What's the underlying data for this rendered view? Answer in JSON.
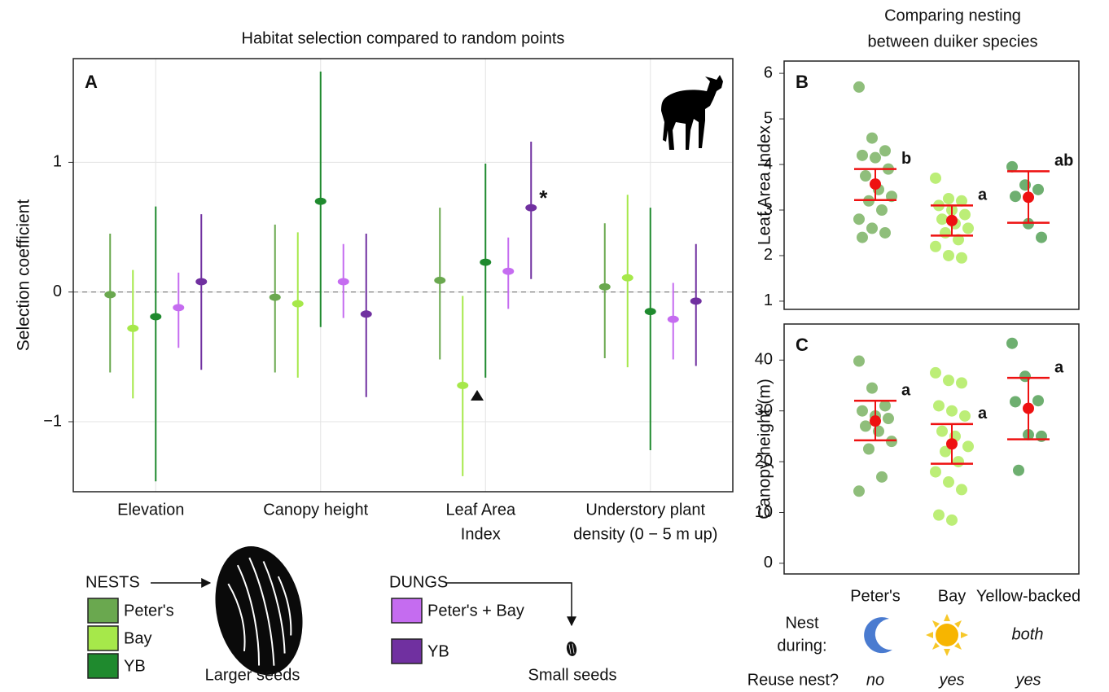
{
  "chart_data": [
    {
      "type": "pointrange",
      "title": "Habitat selection compared to random points",
      "panel_label": "A",
      "y_label": "Selection coefficient",
      "categories": [
        [
          "Elevation"
        ],
        [
          "Canopy height"
        ],
        [
          "Leaf Area",
          "Index"
        ],
        [
          "Understory plant",
          "density (0 − 5 m up)"
        ]
      ],
      "ylim": [
        -1.54,
        1.8
      ],
      "yticks": [
        {
          "value": -1,
          "label": "−1"
        },
        0,
        1
      ],
      "grid": true,
      "reference_line": 0,
      "significance_mark": "*",
      "series_groups": [
        {
          "title": "NESTS",
          "caption": "Larger seeds",
          "series": [
            {
              "name": "Peter's",
              "color": "#6aa84f",
              "values": [
                -0.02,
                -0.04,
                0.09,
                0.04
              ],
              "lower": [
                -0.62,
                -0.62,
                -0.52,
                -0.51
              ],
              "upper": [
                0.45,
                0.52,
                0.65,
                0.53
              ]
            },
            {
              "name": "Bay",
              "color": "#a6e84a",
              "values": [
                -0.28,
                -0.09,
                -0.72,
                0.11
              ],
              "lower": [
                -0.82,
                -0.66,
                -1.42,
                -0.58
              ],
              "upper": [
                0.17,
                0.46,
                -0.03,
                0.75
              ]
            },
            {
              "name": "YB",
              "color": "#1f8a2e",
              "values": [
                -0.19,
                0.7,
                0.23,
                -0.15
              ],
              "lower": [
                -1.46,
                -0.27,
                -0.66,
                -1.22
              ],
              "upper": [
                0.66,
                1.7,
                0.99,
                0.65
              ]
            }
          ]
        },
        {
          "title": "DUNGS",
          "caption": "Small seeds",
          "series": [
            {
              "name": "Peter's + Bay",
              "color": "#c56cf0",
              "values": [
                -0.12,
                0.08,
                0.16,
                -0.21
              ],
              "lower": [
                -0.43,
                -0.2,
                -0.13,
                -0.52
              ],
              "upper": [
                0.15,
                0.37,
                0.42,
                0.07
              ]
            },
            {
              "name": "YB",
              "color": "#7030a0",
              "values": [
                0.08,
                -0.17,
                0.65,
                -0.07
              ],
              "lower": [
                -0.6,
                -0.81,
                0.1,
                -0.57
              ],
              "upper": [
                0.6,
                0.45,
                1.16,
                0.37
              ]
            }
          ]
        }
      ]
    },
    {
      "type": "strip",
      "panel_label": "B",
      "y_label": "Leaf Area Index",
      "ylim": [
        0.82,
        6.27
      ],
      "yticks": [
        1,
        2,
        3,
        4,
        5,
        6
      ],
      "groups": [
        {
          "color": "#6aa84f",
          "values": [
            5.7,
            4.58,
            4.3,
            4.2,
            4.15,
            3.9,
            3.75,
            3.45,
            3.3,
            3.2,
            3.0,
            2.8,
            2.6,
            2.5,
            2.4
          ],
          "mean": 3.57,
          "lower": 3.22,
          "upper": 3.9,
          "letter": "b"
        },
        {
          "color": "#a6e84a",
          "values": [
            3.7,
            3.25,
            3.2,
            3.1,
            3.0,
            2.9,
            2.8,
            2.7,
            2.6,
            2.5,
            2.35,
            2.2,
            2.0,
            1.95
          ],
          "mean": 2.77,
          "lower": 2.44,
          "upper": 3.1,
          "letter": "a"
        },
        {
          "color": "#3d9440",
          "values": [
            3.95,
            3.55,
            3.45,
            3.3,
            2.7,
            2.4
          ],
          "mean": 3.28,
          "lower": 2.72,
          "upper": 3.85,
          "letter": "ab"
        }
      ]
    },
    {
      "type": "strip",
      "panel_label": "C",
      "y_label": "Canopy height (m)",
      "categories": [
        "Peter's",
        "Bay",
        "Yellow-backed"
      ],
      "ylim": [
        -2.1,
        47.1
      ],
      "yticks": [
        0,
        10,
        20,
        30,
        40
      ],
      "groups": [
        {
          "color": "#6aa84f",
          "values": [
            39.8,
            34.5,
            31,
            30,
            29,
            28.5,
            27,
            26,
            24,
            22.5,
            17,
            14.2
          ],
          "mean": 28,
          "lower": 24.2,
          "upper": 32,
          "letter": "a"
        },
        {
          "color": "#a6e84a",
          "values": [
            37.5,
            36,
            35.5,
            31,
            30,
            29,
            26,
            25,
            23,
            22,
            20,
            18,
            16,
            14.5,
            9.5,
            8.5
          ],
          "mean": 23.5,
          "lower": 19.6,
          "upper": 27.4,
          "letter": "a"
        },
        {
          "color": "#3d9440",
          "values": [
            43.3,
            36.8,
            32,
            31.8,
            25.3,
            25,
            18.3
          ],
          "mean": 30.5,
          "lower": 24.4,
          "upper": 36.5,
          "letter": "a"
        }
      ]
    }
  ],
  "side_title": [
    "Comparing nesting",
    "between duiker species"
  ],
  "nest_table": {
    "during_label": [
      "Nest",
      "during:"
    ],
    "during_text": "both",
    "reuse_label": "Reuse nest?",
    "reuse": [
      "no",
      "yes",
      "yes"
    ]
  }
}
